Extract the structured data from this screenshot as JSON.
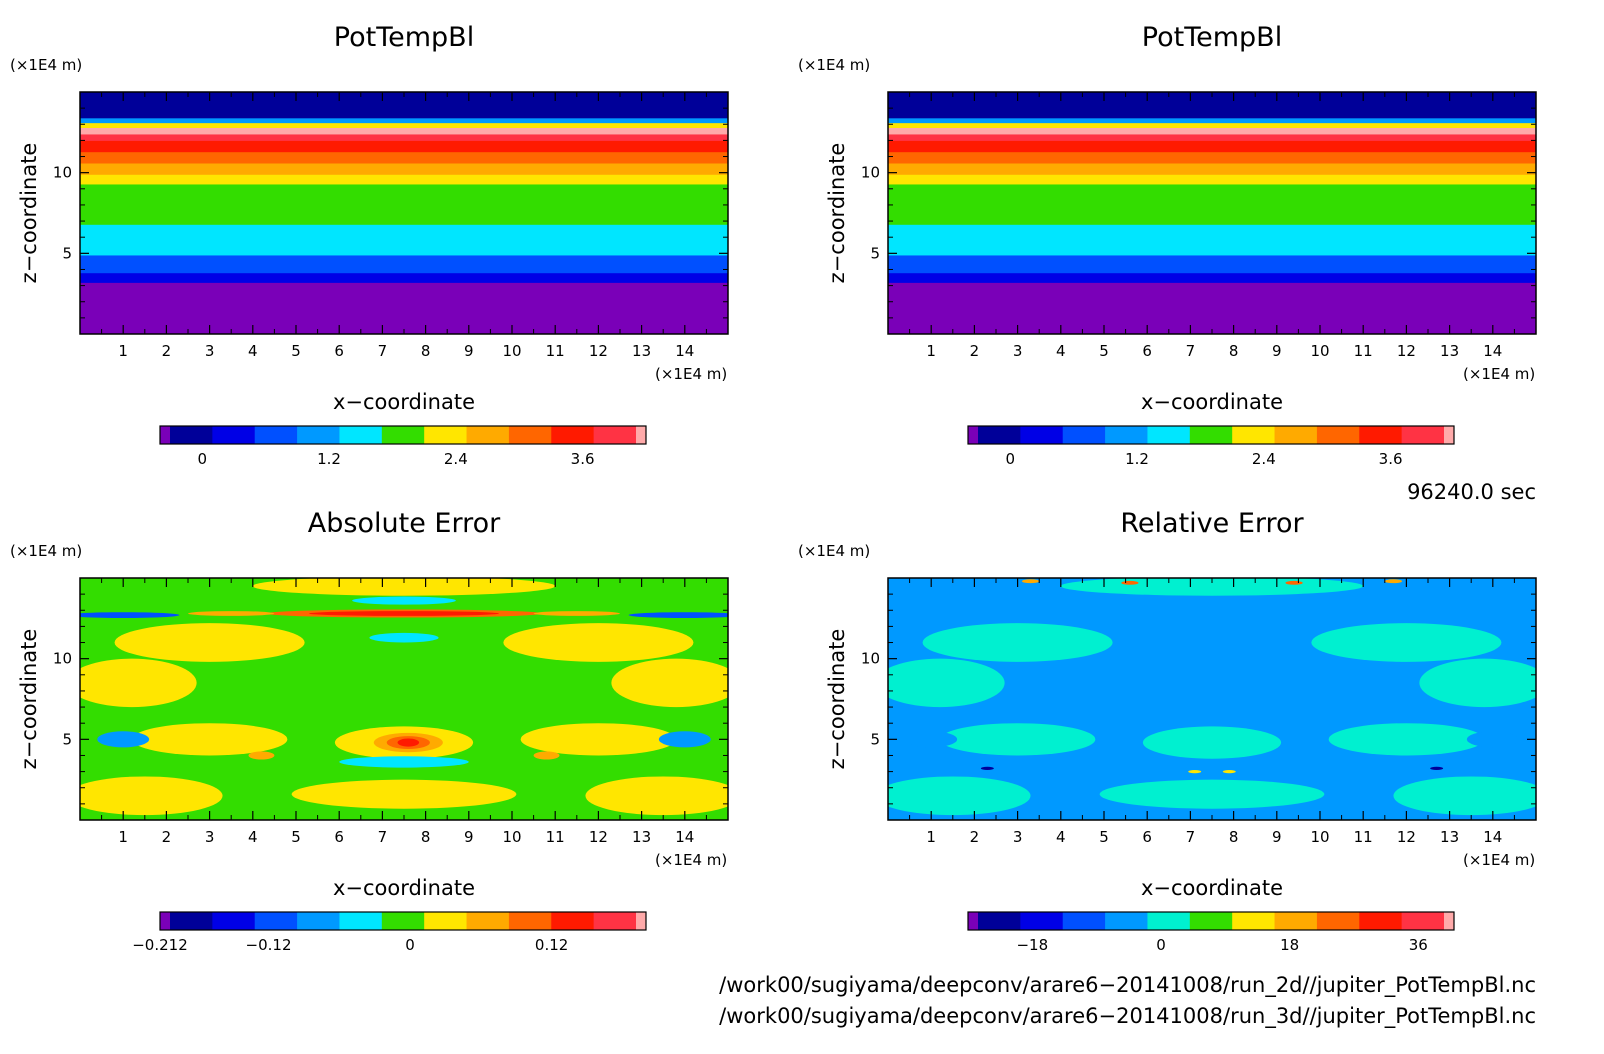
{
  "chart_data": [
    {
      "type": "heatmap",
      "title": "PotTempBl",
      "xlabel": "x−coordinate",
      "ylabel": "z−coordinate",
      "x_unit": "(×1E4 m)",
      "y_unit": "(×1E4 m)",
      "x_ticks": [
        "1",
        "2",
        "3",
        "4",
        "5",
        "6",
        "7",
        "8",
        "9",
        "10",
        "11",
        "12",
        "13",
        "14"
      ],
      "y_ticks": [
        "5",
        "10"
      ],
      "xlim": [
        0,
        15
      ],
      "ylim": [
        0,
        15
      ],
      "colorbar": {
        "colors": [
          "#7a00b8",
          "#000099",
          "#0000e6",
          "#0050ff",
          "#0099ff",
          "#00e6ff",
          "#33dd00",
          "#ffe600",
          "#ffaa00",
          "#ff6600",
          "#ff1a00",
          "#ff3344",
          "#ffaaaa"
        ],
        "ticks": [
          "0",
          "1.2",
          "2.4",
          "3.6"
        ],
        "tick_values": [
          0,
          1.2,
          2.4,
          3.6
        ],
        "range": [
          -0.4,
          4.2
        ]
      },
      "bands": [
        {
          "z": [
            0,
            3.2
          ],
          "level": 0
        },
        {
          "z": [
            3.2,
            3.8
          ],
          "level": 2
        },
        {
          "z": [
            3.8,
            4.9
          ],
          "level": 3
        },
        {
          "z": [
            4.9,
            6.8
          ],
          "level": 5
        },
        {
          "z": [
            6.8,
            9.3
          ],
          "level": 6
        },
        {
          "z": [
            9.3,
            9.9
          ],
          "level": 7
        },
        {
          "z": [
            9.9,
            10.6
          ],
          "level": 8
        },
        {
          "z": [
            10.6,
            11.3
          ],
          "level": 9
        },
        {
          "z": [
            11.3,
            12.0
          ],
          "level": 10
        },
        {
          "z": [
            12.0,
            12.4
          ],
          "level": 11
        },
        {
          "z": [
            12.4,
            12.8
          ],
          "level": 12
        },
        {
          "z": [
            12.8,
            13.1
          ],
          "level": 7
        },
        {
          "z": [
            13.1,
            13.4
          ],
          "level": 4
        },
        {
          "z": [
            13.4,
            15.0
          ],
          "level": 1
        }
      ]
    },
    {
      "type": "heatmap",
      "title": "PotTempBl",
      "xlabel": "x−coordinate",
      "ylabel": "z−coordinate",
      "x_unit": "(×1E4 m)",
      "y_unit": "(×1E4 m)",
      "x_ticks": [
        "1",
        "2",
        "3",
        "4",
        "5",
        "6",
        "7",
        "8",
        "9",
        "10",
        "11",
        "12",
        "13",
        "14"
      ],
      "y_ticks": [
        "5",
        "10"
      ],
      "xlim": [
        0,
        15
      ],
      "ylim": [
        0,
        15
      ],
      "colorbar": {
        "colors": [
          "#7a00b8",
          "#000099",
          "#0000e6",
          "#0050ff",
          "#0099ff",
          "#00e6ff",
          "#33dd00",
          "#ffe600",
          "#ffaa00",
          "#ff6600",
          "#ff1a00",
          "#ff3344",
          "#ffaaaa"
        ],
        "ticks": [
          "0",
          "1.2",
          "2.4",
          "3.6"
        ],
        "tick_values": [
          0,
          1.2,
          2.4,
          3.6
        ],
        "range": [
          -0.4,
          4.2
        ]
      },
      "bands": [
        {
          "z": [
            0,
            3.2
          ],
          "level": 0
        },
        {
          "z": [
            3.2,
            3.8
          ],
          "level": 2
        },
        {
          "z": [
            3.8,
            4.9
          ],
          "level": 3
        },
        {
          "z": [
            4.9,
            6.8
          ],
          "level": 5
        },
        {
          "z": [
            6.8,
            9.3
          ],
          "level": 6
        },
        {
          "z": [
            9.3,
            9.9
          ],
          "level": 7
        },
        {
          "z": [
            9.9,
            10.6
          ],
          "level": 8
        },
        {
          "z": [
            10.6,
            11.3
          ],
          "level": 9
        },
        {
          "z": [
            11.3,
            12.0
          ],
          "level": 10
        },
        {
          "z": [
            12.0,
            12.4
          ],
          "level": 11
        },
        {
          "z": [
            12.4,
            12.8
          ],
          "level": 12
        },
        {
          "z": [
            12.8,
            13.1
          ],
          "level": 7
        },
        {
          "z": [
            13.1,
            13.4
          ],
          "level": 4
        },
        {
          "z": [
            13.4,
            15.0
          ],
          "level": 1
        }
      ]
    },
    {
      "type": "heatmap",
      "title": "Absolute Error",
      "xlabel": "x−coordinate",
      "ylabel": "z−coordinate",
      "x_unit": "(×1E4 m)",
      "y_unit": "(×1E4 m)",
      "x_ticks": [
        "1",
        "2",
        "3",
        "4",
        "5",
        "6",
        "7",
        "8",
        "9",
        "10",
        "11",
        "12",
        "13",
        "14"
      ],
      "y_ticks": [
        "5",
        "10"
      ],
      "xlim": [
        0,
        15
      ],
      "ylim": [
        0,
        15
      ],
      "colorbar": {
        "colors": [
          "#7a00b8",
          "#000099",
          "#0000e6",
          "#0050ff",
          "#0099ff",
          "#00e6ff",
          "#33dd00",
          "#ffe600",
          "#ffaa00",
          "#ff6600",
          "#ff1a00",
          "#ff3344",
          "#ffaaaa"
        ],
        "ticks": [
          "−0.212",
          "−0.12",
          "0",
          "0.12"
        ],
        "tick_values": [
          -0.212,
          -0.12,
          0,
          0.12
        ],
        "range": [
          -0.212,
          0.2
        ]
      },
      "background_level": 6,
      "patches": [
        {
          "x": 3.0,
          "z": 11.0,
          "rx": 2.2,
          "rz": 1.2,
          "level": 7
        },
        {
          "x": 12.0,
          "z": 11.0,
          "rx": 2.2,
          "rz": 1.2,
          "level": 7
        },
        {
          "x": 1.2,
          "z": 8.5,
          "rx": 1.5,
          "rz": 1.5,
          "level": 7
        },
        {
          "x": 13.8,
          "z": 8.5,
          "rx": 1.5,
          "rz": 1.5,
          "level": 7
        },
        {
          "x": 3.0,
          "z": 5.0,
          "rx": 1.8,
          "rz": 1.0,
          "level": 7
        },
        {
          "x": 12.0,
          "z": 5.0,
          "rx": 1.8,
          "rz": 1.0,
          "level": 7
        },
        {
          "x": 7.5,
          "z": 4.8,
          "rx": 1.6,
          "rz": 1.0,
          "level": 7
        },
        {
          "x": 1.5,
          "z": 1.5,
          "rx": 1.8,
          "rz": 1.2,
          "level": 7
        },
        {
          "x": 13.5,
          "z": 1.5,
          "rx": 1.8,
          "rz": 1.2,
          "level": 7
        },
        {
          "x": 7.5,
          "z": 1.6,
          "rx": 2.6,
          "rz": 0.9,
          "level": 7
        },
        {
          "x": 7.5,
          "z": 14.5,
          "rx": 3.5,
          "rz": 0.6,
          "level": 7
        },
        {
          "x": 1.0,
          "z": 5.0,
          "rx": 0.6,
          "rz": 0.5,
          "level": 4
        },
        {
          "x": 14.0,
          "z": 5.0,
          "rx": 0.6,
          "rz": 0.5,
          "level": 4
        },
        {
          "x": 7.5,
          "z": 3.6,
          "rx": 1.5,
          "rz": 0.35,
          "level": 5
        },
        {
          "x": 7.5,
          "z": 11.3,
          "rx": 0.8,
          "rz": 0.3,
          "level": 5
        },
        {
          "x": 7.5,
          "z": 13.6,
          "rx": 1.2,
          "rz": 0.25,
          "level": 5
        },
        {
          "x": 7.6,
          "z": 4.8,
          "rx": 0.8,
          "rz": 0.6,
          "level": 8
        },
        {
          "x": 7.6,
          "z": 4.8,
          "rx": 0.5,
          "rz": 0.4,
          "level": 9
        },
        {
          "x": 7.6,
          "z": 4.8,
          "rx": 0.25,
          "rz": 0.25,
          "level": 10
        },
        {
          "x": 4.2,
          "z": 4.0,
          "rx": 0.3,
          "rz": 0.25,
          "level": 8
        },
        {
          "x": 10.8,
          "z": 4.0,
          "rx": 0.3,
          "rz": 0.25,
          "level": 8
        },
        {
          "x": 7.5,
          "z": 12.8,
          "rx": 3.2,
          "rz": 0.25,
          "level": 9
        },
        {
          "x": 7.5,
          "z": 12.8,
          "rx": 2.2,
          "rz": 0.15,
          "level": 10
        },
        {
          "x": 1.0,
          "z": 12.7,
          "rx": 1.3,
          "rz": 0.18,
          "level": 3
        },
        {
          "x": 14.0,
          "z": 12.7,
          "rx": 1.3,
          "rz": 0.18,
          "level": 3
        },
        {
          "x": 3.5,
          "z": 12.8,
          "rx": 1.0,
          "rz": 0.15,
          "level": 8
        },
        {
          "x": 11.5,
          "z": 12.8,
          "rx": 1.0,
          "rz": 0.15,
          "level": 8
        }
      ]
    },
    {
      "type": "heatmap",
      "title": "Relative Error",
      "xlabel": "x−coordinate",
      "ylabel": "z−coordinate",
      "x_unit": "(×1E4 m)",
      "y_unit": "(×1E4 m)",
      "x_ticks": [
        "1",
        "2",
        "3",
        "4",
        "5",
        "6",
        "7",
        "8",
        "9",
        "10",
        "11",
        "12",
        "13",
        "14"
      ],
      "y_ticks": [
        "5",
        "10"
      ],
      "xlim": [
        0,
        15
      ],
      "ylim": [
        0,
        15
      ],
      "colorbar": {
        "colors": [
          "#7a00b8",
          "#000099",
          "#0000e6",
          "#0050ff",
          "#0099ff",
          "#00f0d0",
          "#33dd00",
          "#ffe600",
          "#ffaa00",
          "#ff6600",
          "#ff1a00",
          "#ff3344",
          "#ffaaaa"
        ],
        "ticks": [
          "−18",
          "0",
          "18",
          "36"
        ],
        "tick_values": [
          -18,
          0,
          18,
          36
        ],
        "range": [
          -27,
          41
        ]
      },
      "background_level": 4,
      "patches": [
        {
          "x": 3.0,
          "z": 11.0,
          "rx": 2.2,
          "rz": 1.2,
          "level": 5
        },
        {
          "x": 12.0,
          "z": 11.0,
          "rx": 2.2,
          "rz": 1.2,
          "level": 5
        },
        {
          "x": 1.2,
          "z": 8.5,
          "rx": 1.5,
          "rz": 1.5,
          "level": 5
        },
        {
          "x": 13.8,
          "z": 8.5,
          "rx": 1.5,
          "rz": 1.5,
          "level": 5
        },
        {
          "x": 3.0,
          "z": 5.0,
          "rx": 1.8,
          "rz": 1.0,
          "level": 5
        },
        {
          "x": 12.0,
          "z": 5.0,
          "rx": 1.8,
          "rz": 1.0,
          "level": 5
        },
        {
          "x": 7.5,
          "z": 4.8,
          "rx": 1.6,
          "rz": 1.0,
          "level": 5
        },
        {
          "x": 1.5,
          "z": 1.5,
          "rx": 1.8,
          "rz": 1.2,
          "level": 5
        },
        {
          "x": 13.5,
          "z": 1.5,
          "rx": 1.8,
          "rz": 1.2,
          "level": 5
        },
        {
          "x": 7.5,
          "z": 1.6,
          "rx": 2.6,
          "rz": 0.9,
          "level": 5
        },
        {
          "x": 7.5,
          "z": 14.5,
          "rx": 3.5,
          "rz": 0.6,
          "level": 5
        },
        {
          "x": 1.0,
          "z": 5.0,
          "rx": 0.6,
          "rz": 0.5,
          "level": 4
        },
        {
          "x": 14.0,
          "z": 5.0,
          "rx": 0.6,
          "rz": 0.5,
          "level": 4
        },
        {
          "x": 3.3,
          "z": 14.8,
          "rx": 0.2,
          "rz": 0.12,
          "level": 8
        },
        {
          "x": 5.6,
          "z": 14.7,
          "rx": 0.2,
          "rz": 0.12,
          "level": 9
        },
        {
          "x": 9.4,
          "z": 14.7,
          "rx": 0.2,
          "rz": 0.12,
          "level": 9
        },
        {
          "x": 11.7,
          "z": 14.8,
          "rx": 0.2,
          "rz": 0.12,
          "level": 8
        },
        {
          "x": 7.1,
          "z": 3.0,
          "rx": 0.15,
          "rz": 0.1,
          "level": 7
        },
        {
          "x": 7.9,
          "z": 3.0,
          "rx": 0.15,
          "rz": 0.1,
          "level": 7
        },
        {
          "x": 2.3,
          "z": 3.2,
          "rx": 0.15,
          "rz": 0.1,
          "level": 1
        },
        {
          "x": 12.7,
          "z": 3.2,
          "rx": 0.15,
          "rz": 0.1,
          "level": 1
        }
      ]
    }
  ],
  "info": {
    "time": "96240.0 sec",
    "path1": "/work00/sugiyama/deepconv/arare6−20141008/run_2d//jupiter_PotTempBl.nc",
    "path2": "/work00/sugiyama/deepconv/arare6−20141008/run_3d//jupiter_PotTempBl.nc"
  }
}
